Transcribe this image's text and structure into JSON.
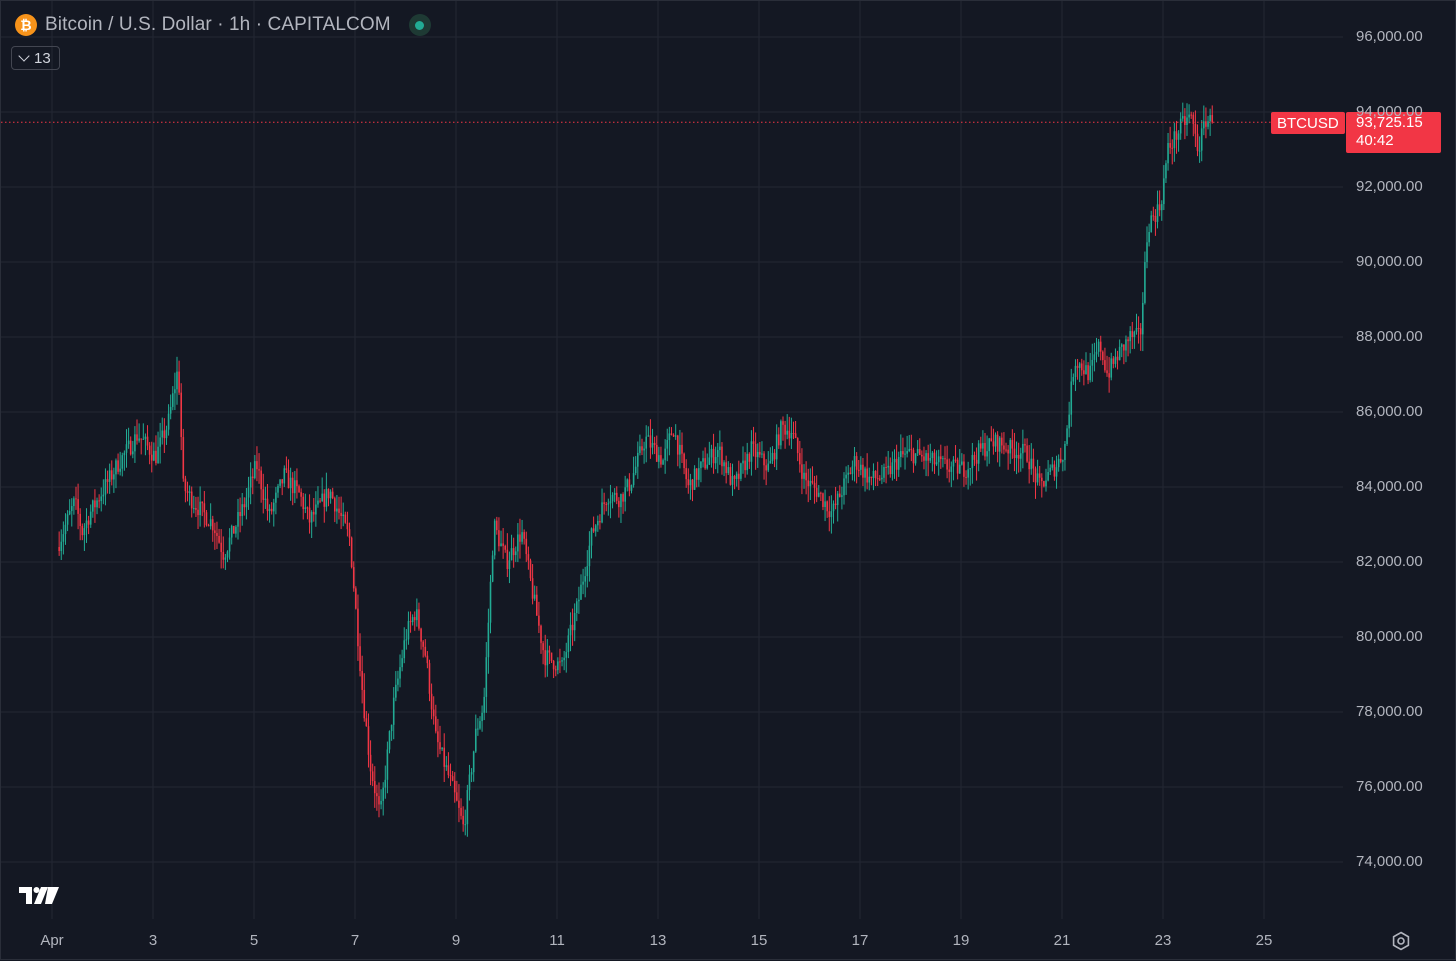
{
  "header": {
    "title": "Bitcoin / U.S. Dollar · 1h · CAPITALCOM",
    "coin_icon": "bitcoin-icon",
    "status": "market-open-dot"
  },
  "indicator_toggle": {
    "count": "13",
    "icon": "chevron-down-icon"
  },
  "price_tag": {
    "symbol": "BTCUSD",
    "price": "93,725.15",
    "countdown": "40:42",
    "color": "#f23645"
  },
  "colors": {
    "background": "#141823",
    "grid": "#232733",
    "up": "#22ab94",
    "down": "#f23645",
    "text": "#b2b5be"
  },
  "icons": {
    "logo": "tradingview-logo",
    "settings": "settings-icon"
  },
  "chart_data": {
    "type": "candlestick",
    "interval": "1h",
    "ylim": [
      72500,
      96500
    ],
    "y_ticks": [
      "96,000.00",
      "94,000.00",
      "92,000.00",
      "90,000.00",
      "88,000.00",
      "86,000.00",
      "84,000.00",
      "82,000.00",
      "80,000.00",
      "78,000.00",
      "76,000.00",
      "74,000.00"
    ],
    "y_tick_values": [
      96000,
      94000,
      92000,
      90000,
      88000,
      86000,
      84000,
      82000,
      80000,
      78000,
      76000,
      74000
    ],
    "x_ticks": [
      "Apr",
      "3",
      "5",
      "7",
      "9",
      "11",
      "13",
      "15",
      "17",
      "19",
      "21",
      "23",
      "25"
    ],
    "x_tick_days": [
      1,
      3,
      5,
      7,
      9,
      11,
      13,
      15,
      17,
      19,
      21,
      23,
      25
    ],
    "x_range_days": [
      1.2,
      28.0
    ],
    "last_price": 93725.15,
    "price_path": [
      {
        "d": 1.1,
        "p": 82400
      },
      {
        "d": 1.45,
        "p": 83600
      },
      {
        "d": 1.6,
        "p": 82800
      },
      {
        "d": 1.75,
        "p": 83300
      },
      {
        "d": 2.3,
        "p": 84600
      },
      {
        "d": 2.7,
        "p": 85400
      },
      {
        "d": 3.05,
        "p": 84800
      },
      {
        "d": 3.3,
        "p": 85700
      },
      {
        "d": 3.5,
        "p": 87200
      },
      {
        "d": 3.6,
        "p": 84000
      },
      {
        "d": 3.8,
        "p": 83600
      },
      {
        "d": 4.2,
        "p": 83000
      },
      {
        "d": 4.4,
        "p": 82200
      },
      {
        "d": 4.8,
        "p": 83500
      },
      {
        "d": 5.05,
        "p": 84600
      },
      {
        "d": 5.3,
        "p": 83200
      },
      {
        "d": 5.6,
        "p": 84300
      },
      {
        "d": 5.9,
        "p": 83800
      },
      {
        "d": 6.1,
        "p": 83100
      },
      {
        "d": 6.5,
        "p": 83900
      },
      {
        "d": 6.9,
        "p": 82600
      },
      {
        "d": 7.15,
        "p": 78500
      },
      {
        "d": 7.3,
        "p": 76600
      },
      {
        "d": 7.5,
        "p": 75200
      },
      {
        "d": 7.75,
        "p": 78100
      },
      {
        "d": 8.0,
        "p": 80000
      },
      {
        "d": 8.2,
        "p": 80700
      },
      {
        "d": 8.4,
        "p": 79500
      },
      {
        "d": 8.6,
        "p": 77300
      },
      {
        "d": 8.9,
        "p": 76100
      },
      {
        "d": 9.15,
        "p": 74900
      },
      {
        "d": 9.4,
        "p": 77500
      },
      {
        "d": 9.55,
        "p": 78200
      },
      {
        "d": 9.75,
        "p": 83000
      },
      {
        "d": 10.0,
        "p": 82000
      },
      {
        "d": 10.3,
        "p": 82800
      },
      {
        "d": 10.5,
        "p": 81300
      },
      {
        "d": 10.75,
        "p": 79500
      },
      {
        "d": 11.1,
        "p": 79200
      },
      {
        "d": 11.4,
        "p": 80800
      },
      {
        "d": 11.7,
        "p": 82800
      },
      {
        "d": 12.0,
        "p": 83800
      },
      {
        "d": 12.25,
        "p": 83700
      },
      {
        "d": 12.45,
        "p": 84100
      },
      {
        "d": 12.75,
        "p": 85300
      },
      {
        "d": 13.1,
        "p": 84700
      },
      {
        "d": 13.3,
        "p": 85600
      },
      {
        "d": 13.6,
        "p": 84000
      },
      {
        "d": 13.9,
        "p": 84600
      },
      {
        "d": 14.2,
        "p": 85000
      },
      {
        "d": 14.5,
        "p": 84000
      },
      {
        "d": 14.85,
        "p": 85000
      },
      {
        "d": 15.2,
        "p": 84500
      },
      {
        "d": 15.45,
        "p": 85600
      },
      {
        "d": 15.65,
        "p": 85500
      },
      {
        "d": 15.9,
        "p": 84200
      },
      {
        "d": 16.15,
        "p": 83900
      },
      {
        "d": 16.45,
        "p": 83300
      },
      {
        "d": 16.7,
        "p": 84100
      },
      {
        "d": 16.9,
        "p": 84700
      },
      {
        "d": 17.2,
        "p": 84200
      },
      {
        "d": 17.5,
        "p": 84300
      },
      {
        "d": 17.8,
        "p": 84800
      },
      {
        "d": 18.0,
        "p": 84900
      },
      {
        "d": 18.4,
        "p": 84700
      },
      {
        "d": 18.8,
        "p": 84500
      },
      {
        "d": 19.1,
        "p": 84500
      },
      {
        "d": 19.4,
        "p": 85000
      },
      {
        "d": 19.7,
        "p": 85200
      },
      {
        "d": 20.0,
        "p": 85000
      },
      {
        "d": 20.3,
        "p": 84900
      },
      {
        "d": 20.55,
        "p": 84000
      },
      {
        "d": 20.9,
        "p": 84600
      },
      {
        "d": 21.05,
        "p": 85000
      },
      {
        "d": 21.25,
        "p": 87400
      },
      {
        "d": 21.55,
        "p": 87000
      },
      {
        "d": 21.75,
        "p": 87800
      },
      {
        "d": 21.9,
        "p": 87000
      },
      {
        "d": 22.1,
        "p": 87500
      },
      {
        "d": 22.35,
        "p": 88000
      },
      {
        "d": 22.55,
        "p": 88000
      },
      {
        "d": 22.7,
        "p": 91000
      },
      {
        "d": 22.95,
        "p": 91500
      },
      {
        "d": 23.1,
        "p": 93000
      },
      {
        "d": 23.4,
        "p": 93700
      },
      {
        "d": 23.55,
        "p": 93900
      },
      {
        "d": 23.7,
        "p": 93000
      },
      {
        "d": 23.85,
        "p": 93800
      },
      {
        "d": 24.0,
        "p": 93725
      }
    ]
  }
}
